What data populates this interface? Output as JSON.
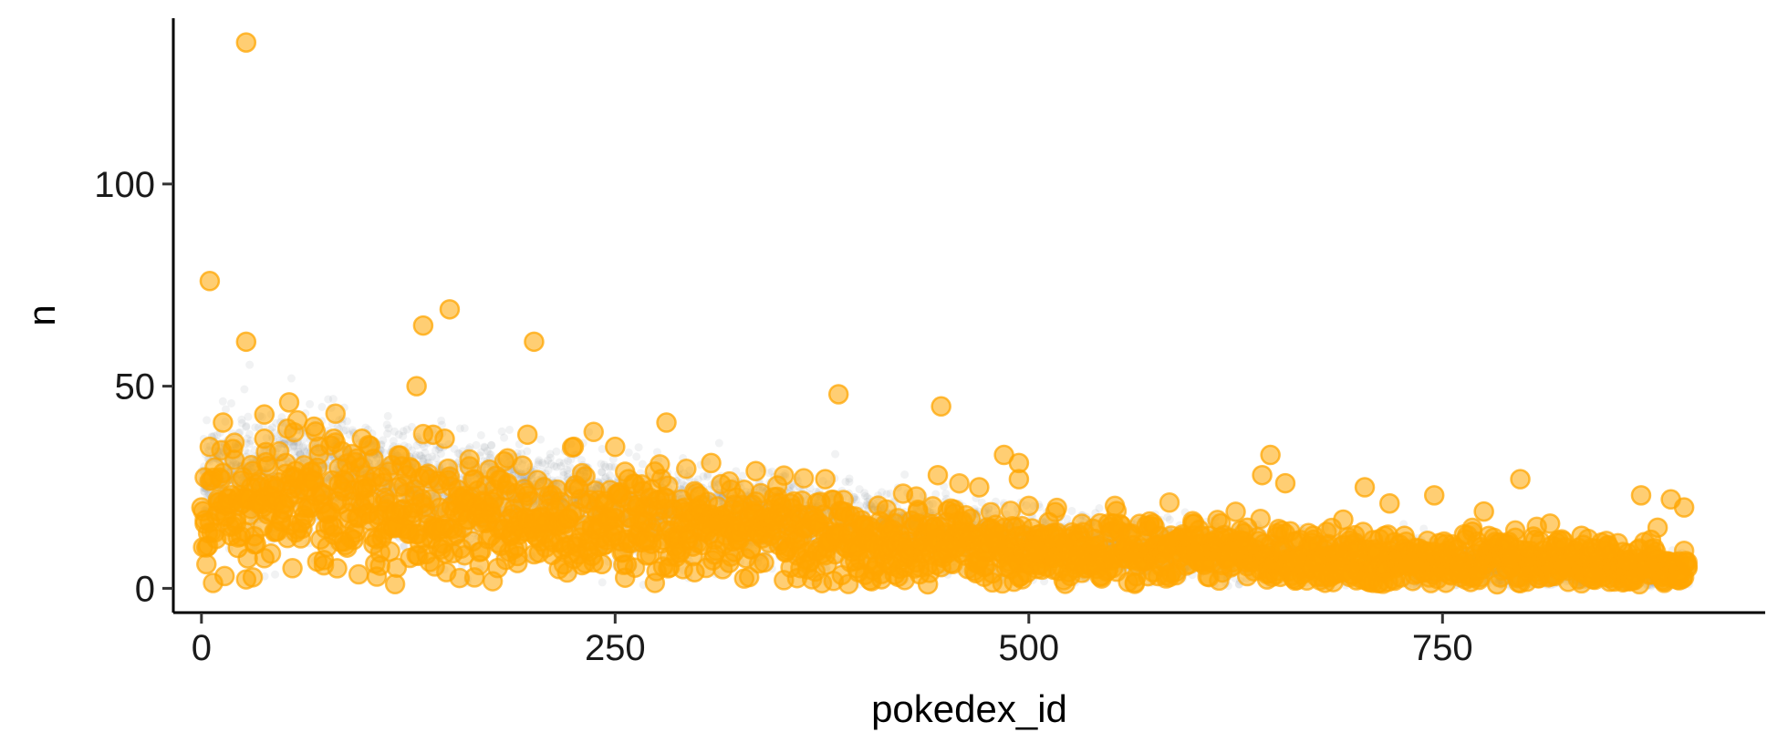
{
  "chart_data": {
    "type": "scatter",
    "xlabel": "pokedex_id",
    "ylabel": "n",
    "xlim": [
      -17,
      945
    ],
    "ylim": [
      -6,
      141
    ],
    "x_ticks": [
      0,
      250,
      500,
      750
    ],
    "y_ticks": [
      0,
      50,
      100
    ],
    "x_tick_labels": [
      "0",
      "250",
      "500",
      "750"
    ],
    "y_tick_labels": [
      "0",
      "50",
      "100"
    ],
    "grid": false,
    "legend": "none",
    "colors": {
      "background_points": "#8a9299",
      "highlight_points": "#ffa500",
      "highlight_outline": "#ffa500"
    },
    "series": [
      {
        "role": "background",
        "style": "small translucent gray points",
        "trend": [
          [
            0,
            27
          ],
          [
            50,
            28
          ],
          [
            100,
            27
          ],
          [
            150,
            24
          ],
          [
            200,
            22
          ],
          [
            250,
            20
          ],
          [
            300,
            18
          ],
          [
            350,
            17
          ],
          [
            400,
            15
          ],
          [
            450,
            13
          ],
          [
            500,
            11
          ],
          [
            550,
            10
          ],
          [
            600,
            9
          ],
          [
            650,
            8
          ],
          [
            700,
            7
          ],
          [
            750,
            6
          ],
          [
            800,
            5
          ],
          [
            850,
            4
          ],
          [
            900,
            4
          ]
        ]
      },
      {
        "role": "highlight",
        "style": "large translucent orange points",
        "trend": [
          [
            0,
            20
          ],
          [
            50,
            21
          ],
          [
            100,
            21
          ],
          [
            150,
            19
          ],
          [
            200,
            17
          ],
          [
            250,
            16
          ],
          [
            300,
            15
          ],
          [
            350,
            14
          ],
          [
            400,
            12
          ],
          [
            450,
            11
          ],
          [
            500,
            9
          ],
          [
            550,
            9
          ],
          [
            600,
            9
          ],
          [
            650,
            8
          ],
          [
            700,
            7
          ],
          [
            750,
            6
          ],
          [
            800,
            6
          ],
          [
            850,
            6
          ],
          [
            900,
            4
          ]
        ],
        "points": [
          [
            27,
            135
          ],
          [
            5,
            76
          ],
          [
            13,
            41
          ],
          [
            27,
            61
          ],
          [
            5,
            35
          ],
          [
            38,
            43
          ],
          [
            38,
            37
          ],
          [
            53,
            46
          ],
          [
            68,
            40
          ],
          [
            80,
            37
          ],
          [
            97,
            37
          ],
          [
            104,
            32
          ],
          [
            130,
            50
          ],
          [
            134,
            65
          ],
          [
            150,
            69
          ],
          [
            140,
            38
          ],
          [
            147,
            37
          ],
          [
            197,
            38
          ],
          [
            201,
            61
          ],
          [
            225,
            35
          ],
          [
            250,
            35
          ],
          [
            281,
            41
          ],
          [
            308,
            31
          ],
          [
            335,
            29
          ],
          [
            385,
            48
          ],
          [
            377,
            27
          ],
          [
            447,
            45
          ],
          [
            445,
            28
          ],
          [
            470,
            25
          ],
          [
            485,
            33
          ],
          [
            494,
            31
          ],
          [
            494,
            27
          ],
          [
            641,
            28
          ],
          [
            646,
            33
          ],
          [
            655,
            26
          ],
          [
            703,
            25
          ],
          [
            745,
            23
          ],
          [
            797,
            27
          ],
          [
            775,
            19
          ],
          [
            870,
            23
          ],
          [
            888,
            22
          ],
          [
            896,
            20
          ],
          [
            0,
            20
          ],
          [
            2,
            16
          ],
          [
            10,
            22
          ],
          [
            18,
            13
          ],
          [
            22,
            10
          ],
          [
            30,
            25
          ],
          [
            45,
            14
          ],
          [
            57,
            29
          ],
          [
            62,
            18
          ],
          [
            74,
            7
          ],
          [
            86,
            24
          ],
          [
            92,
            12
          ],
          [
            111,
            19
          ],
          [
            120,
            15
          ],
          [
            126,
            30
          ],
          [
            158,
            22
          ],
          [
            168,
            9
          ],
          [
            175,
            13
          ],
          [
            185,
            26
          ],
          [
            191,
            8
          ],
          [
            208,
            15
          ],
          [
            217,
            20
          ],
          [
            236,
            8
          ],
          [
            242,
            6
          ],
          [
            258,
            27
          ],
          [
            264,
            18
          ],
          [
            272,
            11
          ],
          [
            290,
            22
          ],
          [
            298,
            4
          ],
          [
            316,
            16
          ],
          [
            322,
            9
          ],
          [
            344,
            13
          ],
          [
            356,
            21
          ],
          [
            362,
            5
          ],
          [
            371,
            17
          ],
          [
            394,
            11
          ],
          [
            404,
            2
          ],
          [
            416,
            14
          ],
          [
            424,
            7
          ],
          [
            433,
            19
          ],
          [
            439,
            1
          ],
          [
            456,
            10
          ],
          [
            460,
            16
          ],
          [
            477,
            12
          ],
          [
            488,
            6
          ],
          [
            505,
            9
          ],
          [
            516,
            13
          ],
          [
            528,
            5
          ],
          [
            540,
            10
          ],
          [
            551,
            16
          ],
          [
            563,
            7
          ],
          [
            572,
            3
          ],
          [
            584,
            11
          ],
          [
            597,
            6
          ],
          [
            609,
            13
          ],
          [
            621,
            9
          ],
          [
            632,
            15
          ],
          [
            661,
            7
          ],
          [
            672,
            12
          ],
          [
            684,
            4
          ],
          [
            690,
            17
          ],
          [
            698,
            2
          ],
          [
            711,
            9
          ],
          [
            718,
            21
          ],
          [
            727,
            13
          ],
          [
            733,
            6
          ],
          [
            752,
            11
          ],
          [
            761,
            4
          ],
          [
            768,
            14
          ],
          [
            783,
            1
          ],
          [
            791,
            8
          ],
          [
            806,
            12
          ],
          [
            815,
            16
          ],
          [
            823,
            5
          ],
          [
            834,
            13
          ],
          [
            842,
            3
          ],
          [
            851,
            10
          ],
          [
            862,
            7
          ],
          [
            876,
            12
          ],
          [
            880,
            15
          ],
          [
            893,
            2
          ],
          [
            898,
            5
          ]
        ]
      }
    ]
  }
}
